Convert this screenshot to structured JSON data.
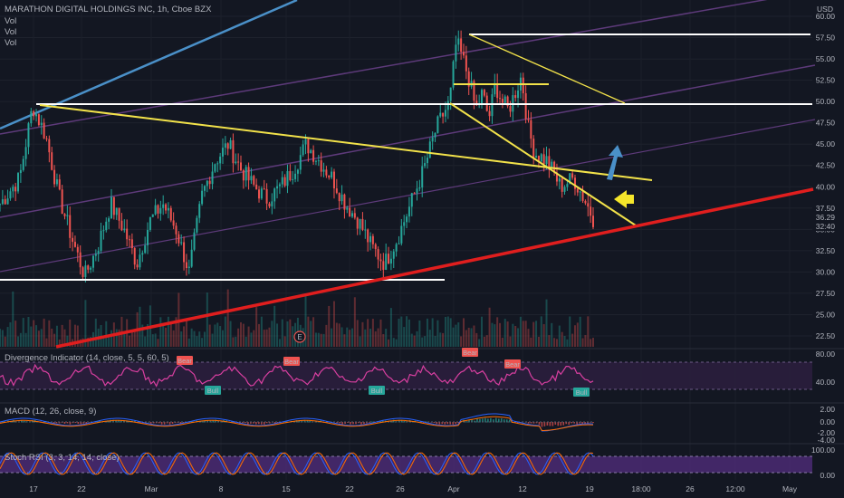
{
  "symbol": {
    "title": "MARATHON DIGITAL HOLDINGS INC, 1h, Cboe BZX",
    "legend": [
      "Vol",
      "Vol",
      "Vol"
    ],
    "currency": "USD"
  },
  "price_axis": {
    "ticks": [
      "60.00",
      "57.50",
      "55.00",
      "52.50",
      "50.00",
      "47.50",
      "45.00",
      "42.50",
      "40.00",
      "37.50",
      "35.00",
      "32.50",
      "30.00",
      "27.50",
      "25.00",
      "22.50"
    ],
    "last_price": "36.29",
    "countdown": "32:40"
  },
  "time_axis": {
    "ticks": [
      "17",
      "22",
      "Mar",
      "8",
      "15",
      "22",
      "26",
      "Apr",
      "12",
      "19",
      "18:00",
      "26",
      "12:00",
      "May"
    ]
  },
  "indicators": {
    "divergence": {
      "title": "Divergence Indicator (14, close, 5, 5, 60, 5)",
      "ticks": [
        "80.00",
        "40.00"
      ],
      "bear_label": "Bear",
      "bull_label": "Bull"
    },
    "macd": {
      "title": "MACD (12, 26, close, 9)",
      "ticks": [
        "2.00",
        "0.00",
        "-2.00",
        "-4.00"
      ]
    },
    "stoch": {
      "title": "Stoch RSI (3, 3, 14, 14, close)",
      "ticks": [
        "100.00",
        "0.00"
      ]
    }
  },
  "earnings_marker": "E",
  "colors": {
    "background": "#131722",
    "up": "#26a69a",
    "down": "#ef5350",
    "support": "#e01e1e",
    "trend": "#f2e24a",
    "level": "#ffffff",
    "channel_blue": "#4a90c8",
    "channel_purple": "#6a3f88",
    "rsi_line": "#d83fa0",
    "stoch_band": "#4b2a73"
  },
  "chart_data": {
    "type": "candlestick",
    "title": "MARATHON DIGITAL HOLDINGS INC, 1h, Cboe BZX",
    "ylim": [
      21,
      61
    ],
    "x": [
      "Feb 17",
      "Feb 22",
      "Mar",
      "Mar 8",
      "Mar 15",
      "Mar 22",
      "Mar 26",
      "Apr",
      "Apr 12",
      "Apr 19"
    ],
    "close_path": [
      [
        0,
        38
      ],
      [
        3,
        41
      ],
      [
        5,
        49.5
      ],
      [
        7,
        46
      ],
      [
        9,
        39
      ],
      [
        11,
        34
      ],
      [
        13,
        29.5
      ],
      [
        15,
        33
      ],
      [
        17,
        38
      ],
      [
        19,
        35
      ],
      [
        21,
        31
      ],
      [
        23,
        36
      ],
      [
        25,
        38
      ],
      [
        27,
        35
      ],
      [
        29,
        30
      ],
      [
        31,
        39
      ],
      [
        33,
        43
      ],
      [
        35,
        45
      ],
      [
        37,
        42
      ],
      [
        39,
        40
      ],
      [
        41,
        38.5
      ],
      [
        43,
        40
      ],
      [
        45,
        42
      ],
      [
        47,
        45
      ],
      [
        49,
        43
      ],
      [
        51,
        41
      ],
      [
        53,
        38
      ],
      [
        55,
        36
      ],
      [
        57,
        33
      ],
      [
        59,
        31
      ],
      [
        61,
        34
      ],
      [
        63,
        38
      ],
      [
        65,
        42
      ],
      [
        67,
        47
      ],
      [
        69,
        50
      ],
      [
        70,
        57
      ],
      [
        71,
        55
      ],
      [
        72,
        52.5
      ],
      [
        73,
        49
      ],
      [
        74,
        51
      ],
      [
        75,
        48
      ],
      [
        76,
        52
      ],
      [
        77,
        50
      ],
      [
        78,
        49
      ],
      [
        80,
        53
      ],
      [
        81,
        47
      ],
      [
        82,
        44
      ],
      [
        84,
        43
      ],
      [
        86,
        40
      ],
      [
        88,
        41
      ],
      [
        90,
        38
      ],
      [
        91,
        36.3
      ]
    ],
    "levels": [
      57.9,
      49.5,
      29.0
    ],
    "last_price": 36.29,
    "annotations": [
      {
        "type": "support_line",
        "from": [
          "Feb 17",
          21.0
        ],
        "to": [
          "May",
          40.0
        ]
      },
      {
        "type": "trendline",
        "from": [
          "Feb 19",
          49.5
        ],
        "to": [
          "Apr 22",
          40.5
        ]
      }
    ]
  }
}
